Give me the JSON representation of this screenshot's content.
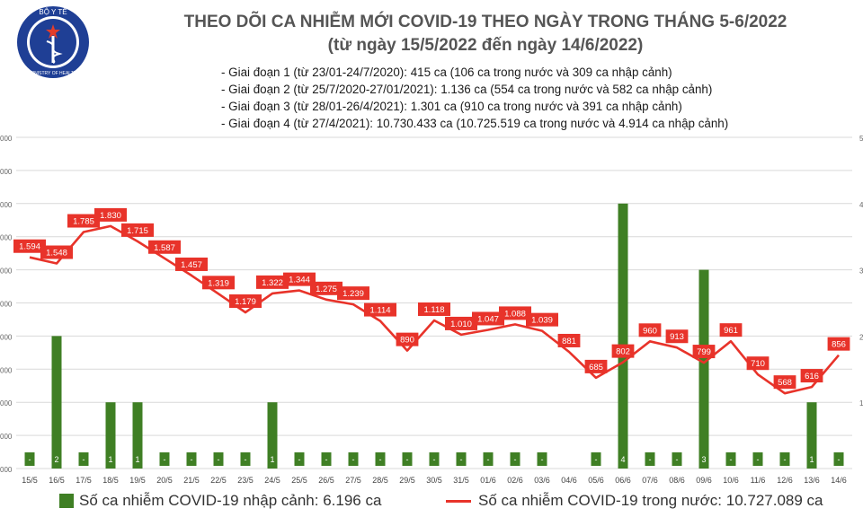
{
  "header": {
    "logo_label": "BỘ Y TẾ",
    "logo_sublabel": "MINISTRY OF HEALTH",
    "title_line1": "THEO DÕI CA NHIỄM MỚI COVID-19 THEO NGÀY TRONG THÁNG 5-6/2022",
    "title_line2": "(từ ngày 15/5/2022 đến ngày 14/6/2022)",
    "phases": [
      "- Giai đoạn 1 (từ 23/01-24/7/2020): 415 ca (106 ca trong nước và 309 ca nhập cảnh)",
      "- Giai đoạn 2 (từ 25/7/2020-27/01/2021): 1.136 ca (554 ca trong nước và 582 ca nhập cảnh)",
      "- Giai đoạn 3 (từ 28/01-26/4/2021): 1.301 ca (910 ca trong nước và 391 ca nhập cảnh)",
      "- Giai đoạn 4 (từ 27/4/2021): 10.730.433 ca (10.725.519 ca trong nước và 4.914 ca nhập cảnh)"
    ]
  },
  "legend": {
    "bar_label": "Số ca nhiễm COVID-19 nhập cảnh: 6.196 ca",
    "line_label": "Số ca nhiễm COVID-19 trong nước: 10.727.089 ca"
  },
  "chart_data": {
    "type": "bar+line",
    "categories": [
      "15/5",
      "16/5",
      "17/5",
      "18/5",
      "19/5",
      "20/5",
      "21/5",
      "22/5",
      "23/5",
      "24/5",
      "25/5",
      "26/5",
      "27/5",
      "28/5",
      "29/5",
      "30/5",
      "31/5",
      "01/6",
      "02/6",
      "03/6",
      "04/6",
      "05/6",
      "06/6",
      "07/6",
      "08/6",
      "09/6",
      "10/6",
      "11/6",
      "12/6",
      "13/6",
      "14/6"
    ],
    "series": [
      {
        "name": "Số ca nhiễm COVID-19 nhập cảnh: 6.196 ca",
        "kind": "bar",
        "axis": "right",
        "color": "#3f7f24",
        "values": [
          0,
          2,
          0,
          1,
          1,
          0,
          0,
          0,
          0,
          1,
          0,
          0,
          0,
          0,
          0,
          0,
          0,
          0,
          0,
          0,
          null,
          0,
          4,
          0,
          0,
          3,
          0,
          0,
          0,
          1,
          0
        ],
        "labels": [
          "-",
          "2",
          "-",
          "1",
          "1",
          "-",
          "-",
          "-",
          "-",
          "1",
          "-",
          "-",
          "-",
          "-",
          "-",
          "-",
          "-",
          "-",
          "-",
          "-",
          "",
          "-",
          "4",
          "-",
          "-",
          "3",
          "-",
          "-",
          "-",
          "1",
          "-"
        ]
      },
      {
        "name": "Số ca nhiễm COVID-19 trong nước: 10.727.089 ca",
        "kind": "line",
        "axis": "left",
        "color": "#e8332a",
        "values": [
          1594,
          1548,
          1785,
          1830,
          1715,
          1587,
          1457,
          1319,
          1179,
          1322,
          1344,
          1275,
          1239,
          1114,
          890,
          1118,
          1010,
          1047,
          1088,
          1039,
          881,
          685,
          802,
          960,
          913,
          799,
          961,
          710,
          568,
          616,
          856
        ],
        "labels": [
          "1.594",
          "1.548",
          "1.785",
          "1.830",
          "1.715",
          "1.587",
          "1.457",
          "1.319",
          "1.179",
          "1.322",
          "1.344",
          "1.275",
          "1.239",
          "1.114",
          "890",
          "1.118",
          "1.010",
          "1.047",
          "1.088",
          "1.039",
          "881",
          "685",
          "802",
          "960",
          "913",
          "799",
          "961",
          "710",
          "568",
          "616",
          "856"
        ]
      }
    ],
    "left_axis": {
      "ticks": [
        "000",
        "000",
        "000",
        "000",
        "000",
        "000",
        "000",
        "000",
        "000",
        "000",
        "000"
      ]
    },
    "right_axis": {
      "ticks": [
        "5",
        "",
        "4",
        "",
        "3",
        "",
        "2",
        "",
        "1",
        "",
        ""
      ]
    },
    "grid": true,
    "legend_position": "bottom"
  }
}
